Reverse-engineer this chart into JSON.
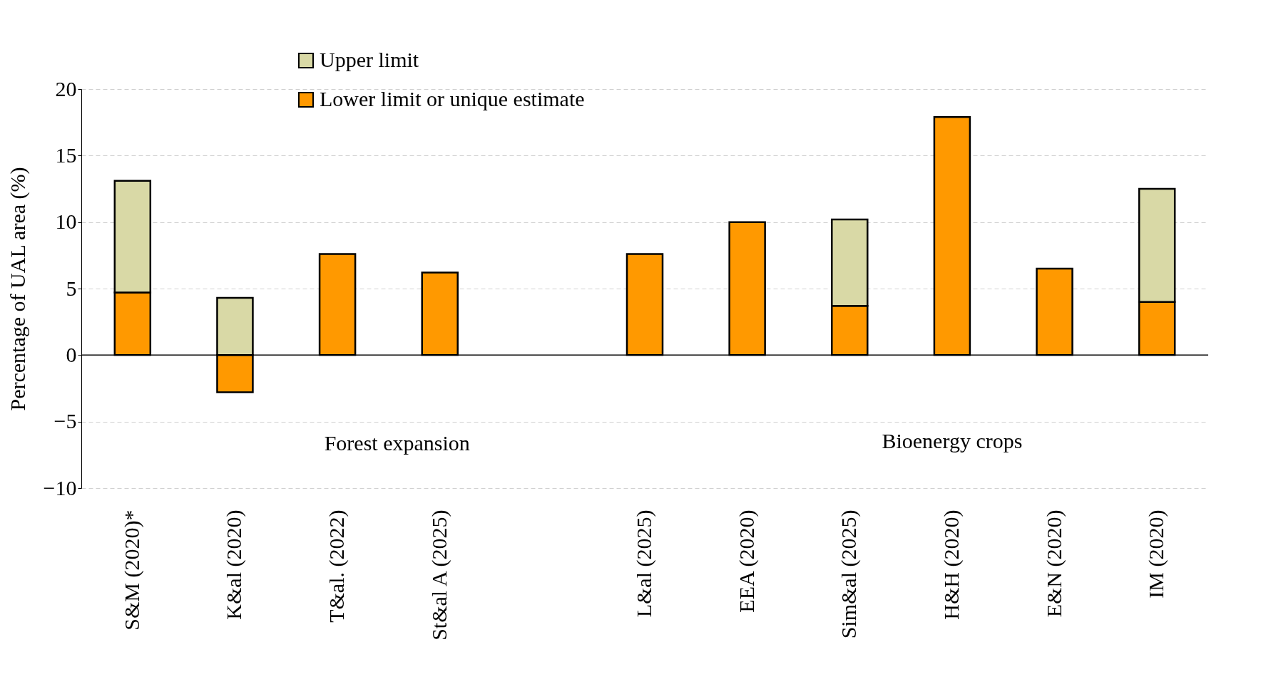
{
  "chart_data": {
    "type": "bar",
    "stacked": true,
    "ylabel": "Percentage of UAL area (%)",
    "categories": [
      "S&M (2020)*",
      "K&al (2020)",
      "T&al. (2022)",
      "St&al A (2025)",
      null,
      "L&al (2025)",
      "EEA (2020)",
      "Sim&al (2025)",
      "H&H (2020)",
      "E&N (2020)",
      "IM (2020)"
    ],
    "series": [
      {
        "name": "Lower limit or unique estimate",
        "color": "#ff9900",
        "values": [
          4.7,
          -2.8,
          7.6,
          6.2,
          null,
          7.6,
          10.0,
          3.7,
          17.9,
          6.5,
          4.0
        ]
      },
      {
        "name": "Upper limit",
        "color": "#d9d9a6",
        "values": [
          8.4,
          4.3,
          null,
          null,
          null,
          null,
          null,
          6.5,
          null,
          null,
          8.5
        ]
      }
    ],
    "ylim": [
      -10,
      20
    ],
    "yticks": [
      -10,
      -5,
      0,
      5,
      10,
      15,
      20
    ],
    "grid": "y",
    "legend": "top",
    "ref_lines": [
      {
        "axis": "y",
        "value": 0
      }
    ],
    "annotations": [
      "Forest expansion",
      "Bioenergy crops"
    ]
  }
}
